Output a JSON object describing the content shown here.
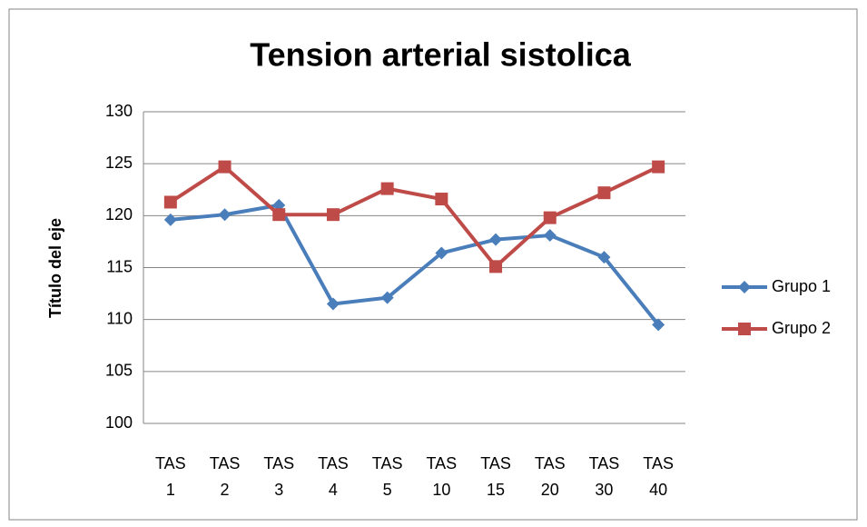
{
  "chart_data": {
    "type": "line",
    "title": "Tension arterial sistolica",
    "y_label": "Título del eje",
    "categories": [
      "TAS 1",
      "TAS 2",
      "TAS 3",
      "TAS 4",
      "TAS 5",
      "TAS 10",
      "TAS 15",
      "TAS 20",
      "TAS 30",
      "TAS 40"
    ],
    "series": [
      {
        "name": "Grupo 1",
        "color": "#4a7ebb",
        "marker": "diamond",
        "values": [
          119.6,
          120.1,
          121.0,
          111.5,
          112.1,
          116.4,
          117.7,
          118.1,
          116.0,
          109.5
        ]
      },
      {
        "name": "Grupo 2",
        "color": "#be4b48",
        "marker": "square",
        "values": [
          121.3,
          124.7,
          120.1,
          120.1,
          122.6,
          121.6,
          115.1,
          119.8,
          122.2,
          124.7
        ]
      }
    ],
    "ylim": [
      100,
      130
    ],
    "yticks": [
      100,
      105,
      110,
      115,
      120,
      125,
      130
    ],
    "grid": true,
    "legend": "right"
  }
}
